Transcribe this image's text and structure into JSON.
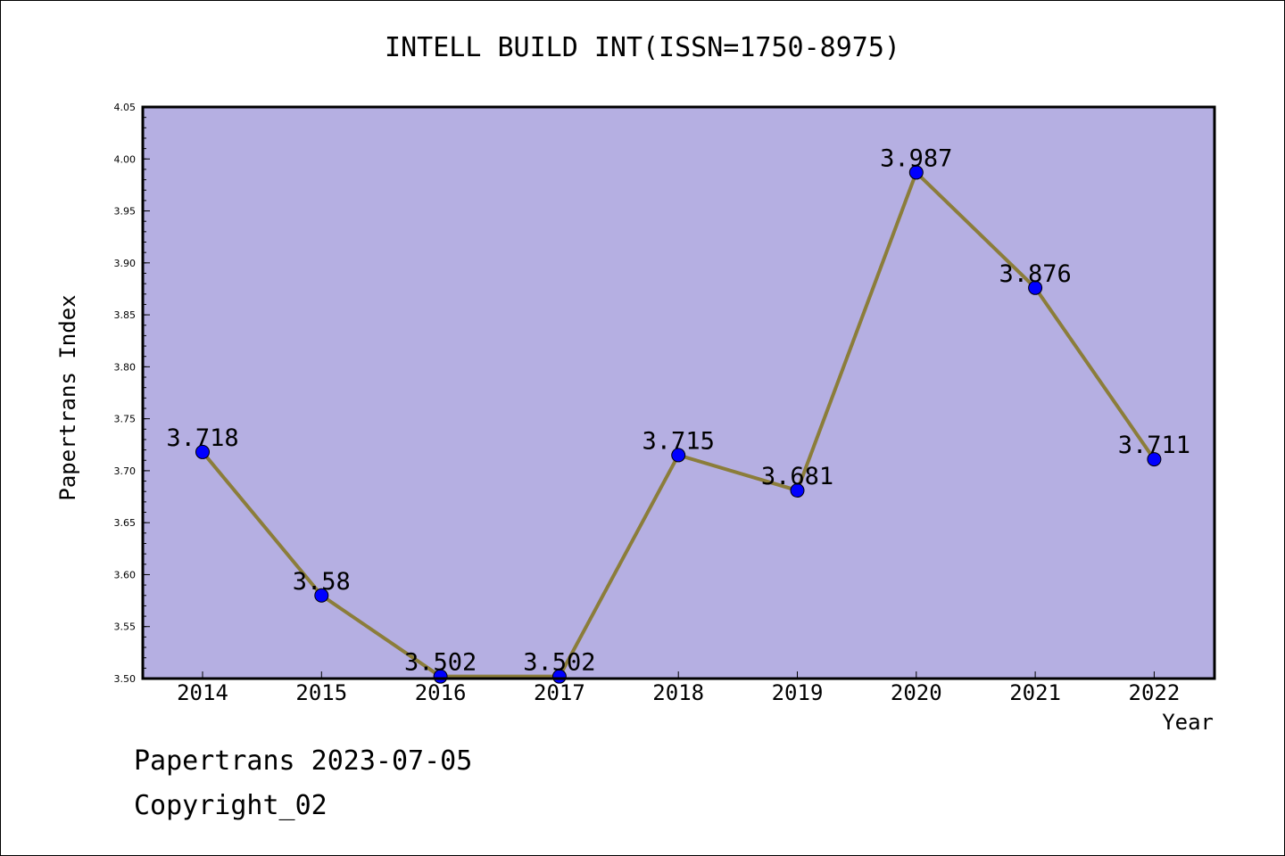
{
  "chart_data": {
    "type": "line",
    "title": "INTELL BUILD INT(ISSN=1750-8975)",
    "xlabel": "Year",
    "ylabel": "Papertrans Index",
    "categories": [
      "2014",
      "2015",
      "2016",
      "2017",
      "2018",
      "2019",
      "2020",
      "2021",
      "2022"
    ],
    "series": [
      {
        "values": [
          3.718,
          3.58,
          3.502,
          3.502,
          3.715,
          3.681,
          3.987,
          3.876,
          3.711
        ],
        "data_labels": [
          "3.718",
          "3.58",
          "3.502",
          "3.502",
          "3.715",
          "3.681",
          "3.987",
          "3.876",
          "3.711"
        ],
        "line_color": "#8B7D3A",
        "marker_color": "#0000FF"
      }
    ],
    "ylim": [
      3.5,
      4.05
    ],
    "yticks": [
      "3.50",
      "3.55",
      "3.60",
      "3.65",
      "3.70",
      "3.75",
      "3.80",
      "3.85",
      "3.90",
      "3.95",
      "4.00",
      "4.05"
    ],
    "plot_background": "#B5AFE2",
    "grid": false,
    "legend": "none"
  },
  "footer": {
    "line1": "Papertrans 2023-07-05",
    "line2": "Copyright_02"
  }
}
